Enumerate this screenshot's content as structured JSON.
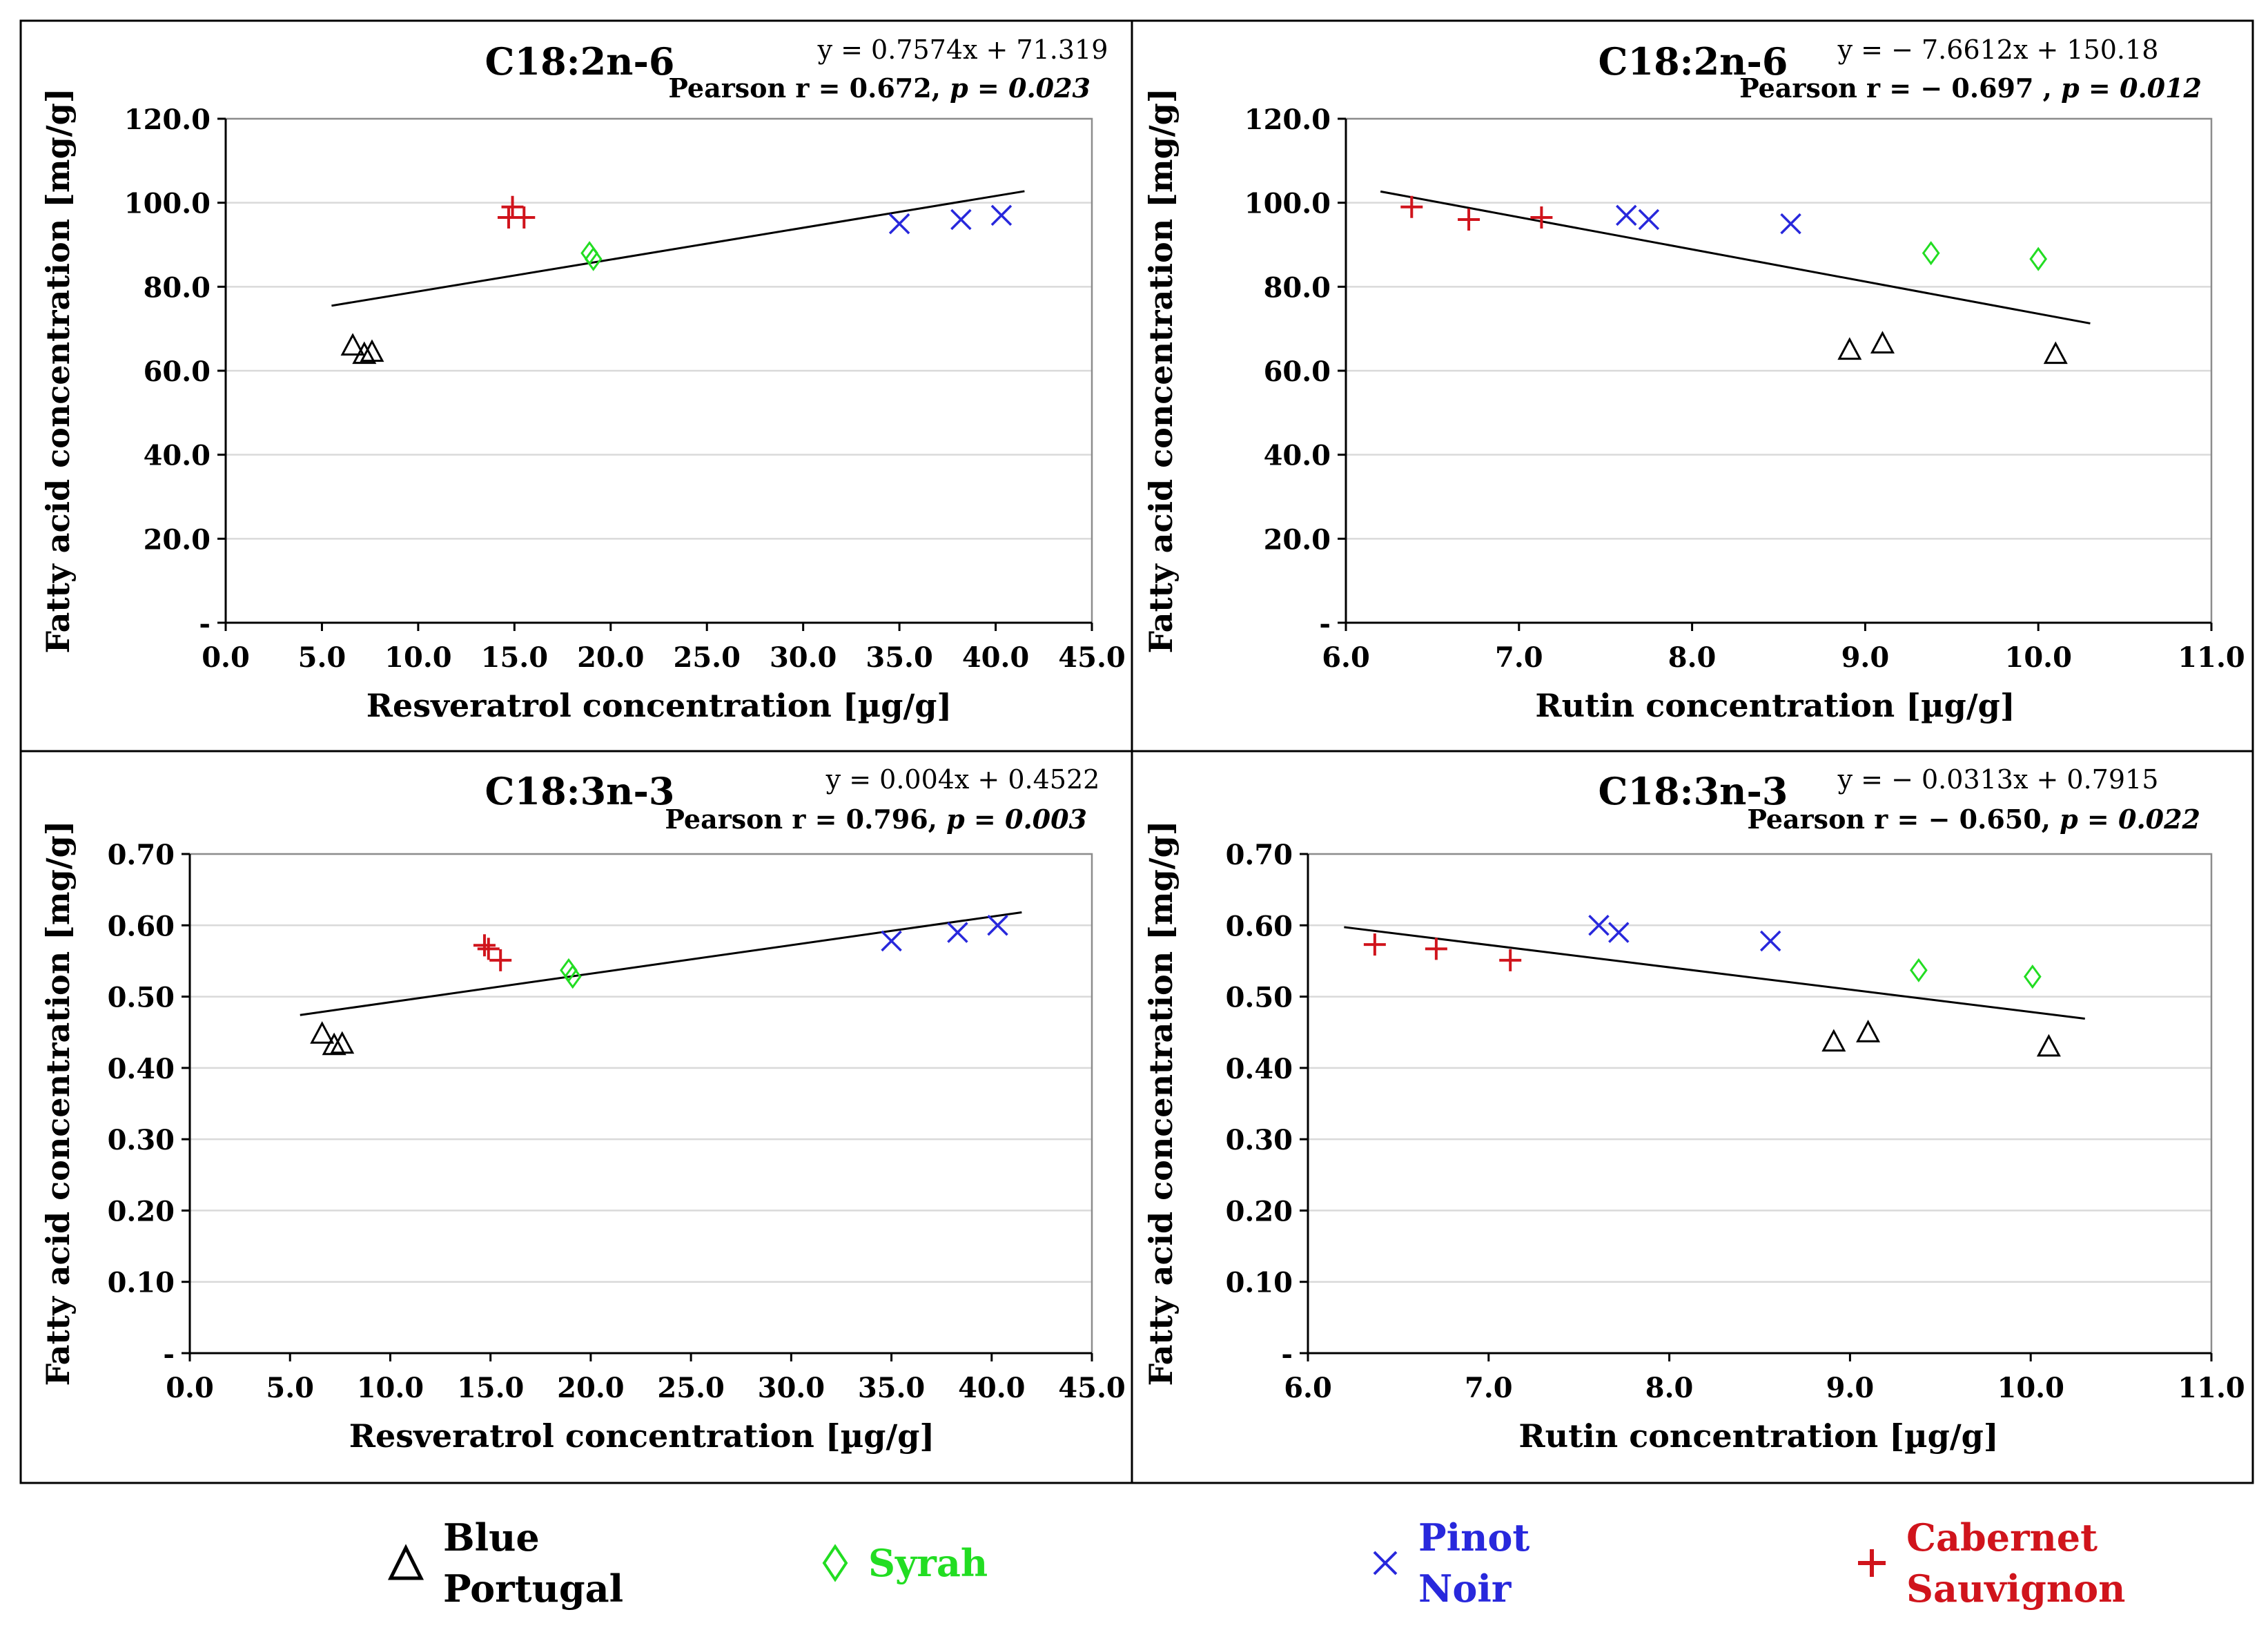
{
  "chart_data": [
    {
      "type": "scatter",
      "title": "C18:2n-6",
      "equation": "y = 0.7574x + 71.319",
      "pearson": {
        "prefix": "Pearson r = 0.672, ",
        "p_label": "p",
        "p_value": " = 0.023"
      },
      "xlabel": "Resveratrol concentration [µg/g]",
      "ylabel": "Fatty acid concentration [mg/g]",
      "xlim": [
        0,
        45
      ],
      "ylim": [
        0,
        120
      ],
      "xticks": [
        0,
        5,
        10,
        15,
        20,
        25,
        30,
        35,
        40,
        45
      ],
      "xtick_labels": [
        "0.0",
        "5.0",
        "10.0",
        "15.0",
        "20.0",
        "25.0",
        "30.0",
        "35.0",
        "40.0",
        "45.0"
      ],
      "yticks": [
        0,
        20,
        40,
        60,
        80,
        100,
        120
      ],
      "ytick_labels": [
        "-",
        "20.0",
        "40.0",
        "60.0",
        "80.0",
        "100.0",
        "120.0"
      ],
      "grid": true,
      "trendline": {
        "slope": 0.7574,
        "intercept": 71.319,
        "x_range": [
          5.5,
          41.5
        ]
      },
      "series": [
        {
          "name": "Blue Portugal",
          "points": [
            [
              6.6,
              66.0
            ],
            [
              7.2,
              64.0
            ],
            [
              7.6,
              64.5
            ]
          ]
        },
        {
          "name": "Syrah",
          "points": [
            [
              18.9,
              88.0
            ],
            [
              19.1,
              86.6
            ]
          ]
        },
        {
          "name": "Pinot Noir",
          "points": [
            [
              35.0,
              95.0
            ],
            [
              38.2,
              96.0
            ],
            [
              40.3,
              97.0
            ]
          ]
        },
        {
          "name": "Cabernet Sauvignon",
          "points": [
            [
              14.9,
              99.0
            ],
            [
              14.7,
              96.5
            ],
            [
              15.5,
              96.5
            ]
          ]
        }
      ]
    },
    {
      "type": "scatter",
      "title": "C18:2n-6",
      "equation": "y = − 7.6612x + 150.18",
      "pearson": {
        "prefix": "Pearson r = − 0.697 , ",
        "p_label": "p",
        "p_value": " = 0.012"
      },
      "xlabel": "Rutin concentration [µg/g]",
      "ylabel": "Fatty acid concentration [mg/g]",
      "xlim": [
        6,
        11
      ],
      "ylim": [
        0,
        120
      ],
      "xticks": [
        6,
        7,
        8,
        9,
        10,
        11
      ],
      "xtick_labels": [
        "6.0",
        "7.0",
        "8.0",
        "9.0",
        "10.0",
        "11.0"
      ],
      "yticks": [
        0,
        20,
        40,
        60,
        80,
        100,
        120
      ],
      "ytick_labels": [
        "-",
        "20.0",
        "40.0",
        "60.0",
        "80.0",
        "100.0",
        "120.0"
      ],
      "grid": true,
      "trendline": {
        "slope": -7.6612,
        "intercept": 150.18,
        "x_range": [
          6.2,
          10.3
        ]
      },
      "series": [
        {
          "name": "Blue Portugal",
          "points": [
            [
              8.91,
              65.0
            ],
            [
              9.1,
              66.5
            ],
            [
              10.1,
              64.0
            ]
          ]
        },
        {
          "name": "Syrah",
          "points": [
            [
              9.38,
              88.0
            ],
            [
              10.0,
              86.6
            ]
          ]
        },
        {
          "name": "Pinot Noir",
          "points": [
            [
              7.62,
              97.0
            ],
            [
              7.75,
              96.0
            ],
            [
              8.57,
              95.0
            ]
          ]
        },
        {
          "name": "Cabernet Sauvignon",
          "points": [
            [
              6.38,
              99.0
            ],
            [
              6.71,
              96.0
            ],
            [
              7.13,
              96.5
            ]
          ]
        }
      ]
    },
    {
      "type": "scatter",
      "title": "C18:3n-3",
      "equation": "y = 0.004x + 0.4522",
      "pearson": {
        "prefix": "Pearson r = 0.796, ",
        "p_label": "p",
        "p_value": " = 0.003"
      },
      "xlabel": "Resveratrol concentration [µg/g]",
      "ylabel": "Fatty acid concentration [mg/g]",
      "xlim": [
        0,
        45
      ],
      "ylim": [
        0,
        0.7
      ],
      "xticks": [
        0,
        5,
        10,
        15,
        20,
        25,
        30,
        35,
        40,
        45
      ],
      "xtick_labels": [
        "0.0",
        "5.0",
        "10.0",
        "15.0",
        "20.0",
        "25.0",
        "30.0",
        "35.0",
        "40.0",
        "45.0"
      ],
      "yticks": [
        0,
        0.1,
        0.2,
        0.3,
        0.4,
        0.5,
        0.6,
        0.7
      ],
      "ytick_labels": [
        "-",
        "0.10",
        "0.20",
        "0.30",
        "0.40",
        "0.50",
        "0.60",
        "0.70"
      ],
      "grid": true,
      "trendline": {
        "slope": 0.004,
        "intercept": 0.4522,
        "x_range": [
          5.5,
          41.5
        ]
      },
      "series": [
        {
          "name": "Blue Portugal",
          "points": [
            [
              6.6,
              0.448
            ],
            [
              7.2,
              0.432
            ],
            [
              7.6,
              0.434
            ]
          ]
        },
        {
          "name": "Syrah",
          "points": [
            [
              18.9,
              0.537
            ],
            [
              19.1,
              0.528
            ]
          ]
        },
        {
          "name": "Pinot Noir",
          "points": [
            [
              35.0,
              0.578
            ],
            [
              38.3,
              0.59
            ],
            [
              40.3,
              0.6
            ]
          ]
        },
        {
          "name": "Cabernet Sauvignon",
          "points": [
            [
              14.7,
              0.572
            ],
            [
              14.9,
              0.567
            ],
            [
              15.5,
              0.551
            ]
          ]
        }
      ]
    },
    {
      "type": "scatter",
      "title": "C18:3n-3",
      "equation": "y = − 0.0313x + 0.7915",
      "pearson": {
        "prefix": "Pearson r = − 0.650, ",
        "p_label": "p",
        "p_value": " = 0.022"
      },
      "xlabel": "Rutin concentration [µg/g]",
      "ylabel": "Fatty acid concentration [mg/g]",
      "xlim": [
        6,
        11
      ],
      "ylim": [
        0,
        0.7
      ],
      "xticks": [
        6,
        7,
        8,
        9,
        10,
        11
      ],
      "xtick_labels": [
        "6.0",
        "7.0",
        "8.0",
        "9.0",
        "10.0",
        "11.0"
      ],
      "yticks": [
        0,
        0.1,
        0.2,
        0.3,
        0.4,
        0.5,
        0.6,
        0.7
      ],
      "ytick_labels": [
        "-",
        "0.10",
        "0.20",
        "0.30",
        "0.40",
        "0.50",
        "0.60",
        "0.70"
      ],
      "grid": true,
      "trendline": {
        "slope": -0.0313,
        "intercept": 0.7915,
        "x_range": [
          6.2,
          10.3
        ]
      },
      "series": [
        {
          "name": "Blue Portugal",
          "points": [
            [
              8.91,
              0.437
            ],
            [
              9.1,
              0.45
            ],
            [
              10.1,
              0.43
            ]
          ]
        },
        {
          "name": "Syrah",
          "points": [
            [
              9.38,
              0.537
            ],
            [
              10.01,
              0.528
            ]
          ]
        },
        {
          "name": "Pinot Noir",
          "points": [
            [
              7.61,
              0.6
            ],
            [
              7.72,
              0.59
            ],
            [
              8.56,
              0.578
            ]
          ]
        },
        {
          "name": "Cabernet Sauvignon",
          "points": [
            [
              6.37,
              0.573
            ],
            [
              6.71,
              0.567
            ],
            [
              7.12,
              0.551
            ]
          ]
        }
      ]
    }
  ],
  "legend": {
    "position": "bottom",
    "items": [
      {
        "name": "Blue Portugal",
        "label": "Blue\nPortugal",
        "marker": "triangle-icon",
        "color": "#000000"
      },
      {
        "name": "Syrah",
        "label": "Syrah",
        "marker": "diamond-icon",
        "color": "#22dd22"
      },
      {
        "name": "Pinot Noir",
        "label": "Pinot\nNoir",
        "marker": "x-icon",
        "color": "#2828dc"
      },
      {
        "name": "Cabernet Sauvignon",
        "label": "Cabernet\nSauvignon",
        "marker": "plus-icon",
        "color": "#d0141c"
      }
    ]
  },
  "colors": {
    "Blue Portugal": "#000000",
    "Syrah": "#22dd22",
    "Pinot Noir": "#2828dc",
    "Cabernet Sauvignon": "#d0141c",
    "trendline": "#000000",
    "grid": "#d9d9d9"
  }
}
